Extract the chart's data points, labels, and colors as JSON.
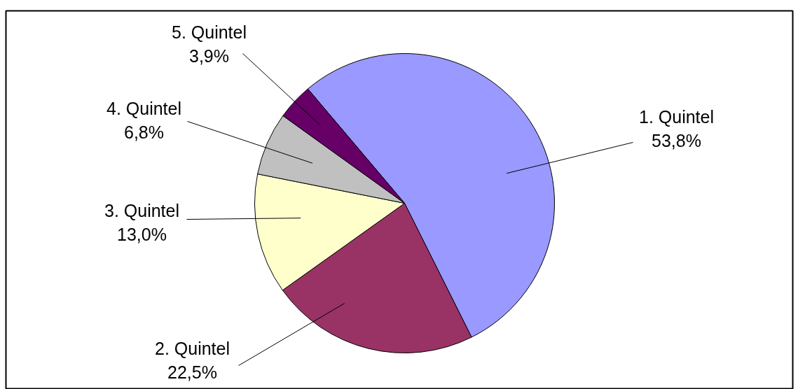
{
  "chart_data": {
    "type": "pie",
    "categories": [
      "1. Quintel",
      "2. Quintel",
      "3. Quintel",
      "4. Quintel",
      "5. Quintel"
    ],
    "values": [
      53.8,
      22.5,
      13.0,
      6.8,
      3.9
    ],
    "colors": [
      "#9999ff",
      "#993366",
      "#ffffcc",
      "#c0c0c0",
      "#660066"
    ],
    "value_labels": [
      "53,8%",
      "22,5%",
      "13,0%",
      "6,8%",
      "3,9%"
    ]
  }
}
